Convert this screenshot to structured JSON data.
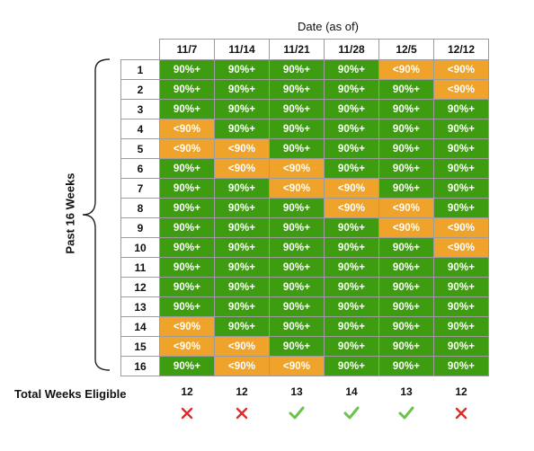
{
  "header": {
    "title": "Date (as of)"
  },
  "side_label": "Past 16 Weeks",
  "columns": [
    "11/7",
    "11/14",
    "11/21",
    "11/28",
    "12/5",
    "12/12"
  ],
  "rows": [
    {
      "label": "1",
      "cells": [
        "90%+",
        "90%+",
        "90%+",
        "90%+",
        "<90%",
        "<90%"
      ]
    },
    {
      "label": "2",
      "cells": [
        "90%+",
        "90%+",
        "90%+",
        "90%+",
        "90%+",
        "<90%"
      ]
    },
    {
      "label": "3",
      "cells": [
        "90%+",
        "90%+",
        "90%+",
        "90%+",
        "90%+",
        "90%+"
      ]
    },
    {
      "label": "4",
      "cells": [
        "<90%",
        "90%+",
        "90%+",
        "90%+",
        "90%+",
        "90%+"
      ]
    },
    {
      "label": "5",
      "cells": [
        "<90%",
        "<90%",
        "90%+",
        "90%+",
        "90%+",
        "90%+"
      ]
    },
    {
      "label": "6",
      "cells": [
        "90%+",
        "<90%",
        "<90%",
        "90%+",
        "90%+",
        "90%+"
      ]
    },
    {
      "label": "7",
      "cells": [
        "90%+",
        "90%+",
        "<90%",
        "<90%",
        "90%+",
        "90%+"
      ]
    },
    {
      "label": "8",
      "cells": [
        "90%+",
        "90%+",
        "90%+",
        "<90%",
        "<90%",
        "90%+"
      ]
    },
    {
      "label": "9",
      "cells": [
        "90%+",
        "90%+",
        "90%+",
        "90%+",
        "<90%",
        "<90%"
      ]
    },
    {
      "label": "10",
      "cells": [
        "90%+",
        "90%+",
        "90%+",
        "90%+",
        "90%+",
        "<90%"
      ]
    },
    {
      "label": "11",
      "cells": [
        "90%+",
        "90%+",
        "90%+",
        "90%+",
        "90%+",
        "90%+"
      ]
    },
    {
      "label": "12",
      "cells": [
        "90%+",
        "90%+",
        "90%+",
        "90%+",
        "90%+",
        "90%+"
      ]
    },
    {
      "label": "13",
      "cells": [
        "90%+",
        "90%+",
        "90%+",
        "90%+",
        "90%+",
        "90%+"
      ]
    },
    {
      "label": "14",
      "cells": [
        "<90%",
        "90%+",
        "90%+",
        "90%+",
        "90%+",
        "90%+"
      ]
    },
    {
      "label": "15",
      "cells": [
        "<90%",
        "<90%",
        "90%+",
        "90%+",
        "90%+",
        "90%+"
      ]
    },
    {
      "label": "16",
      "cells": [
        "90%+",
        "<90%",
        "<90%",
        "90%+",
        "90%+",
        "90%+"
      ]
    }
  ],
  "footer": {
    "label": "Total Weeks Eligible",
    "counts": [
      "12",
      "12",
      "13",
      "14",
      "13",
      "12"
    ],
    "eligible": [
      false,
      false,
      true,
      true,
      true,
      false
    ]
  },
  "colors": {
    "high": "#3d9c0f",
    "low": "#efa32a",
    "check": "#6cc24a",
    "cross": "#e02b2b"
  },
  "icons": {
    "pass": "check-icon",
    "fail": "cross-icon"
  }
}
